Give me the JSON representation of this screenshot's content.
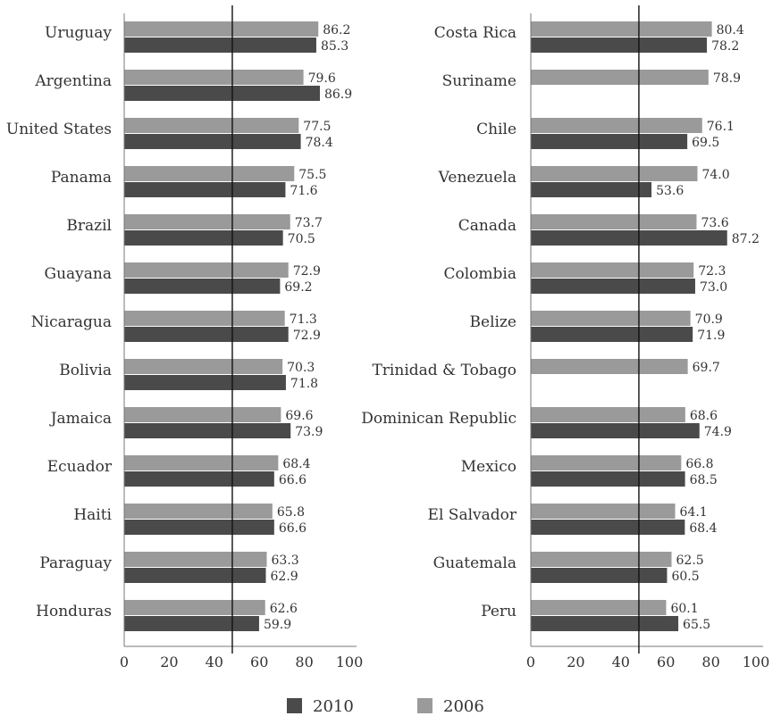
{
  "chart_data": [
    {
      "type": "bar",
      "orientation": "horizontal",
      "categories": [
        "Uruguay",
        "Argentina",
        "United States",
        "Panama",
        "Brazil",
        "Guayana",
        "Nicaragua",
        "Bolivia",
        "Jamaica",
        "Ecuador",
        "Haiti",
        "Paraguay",
        "Honduras"
      ],
      "series": [
        {
          "name": "2006",
          "values": [
            86.2,
            79.6,
            77.5,
            75.5,
            73.7,
            72.9,
            71.3,
            70.3,
            69.6,
            68.4,
            65.8,
            63.3,
            62.6
          ]
        },
        {
          "name": "2010",
          "values": [
            85.3,
            86.9,
            78.4,
            71.6,
            70.5,
            69.2,
            72.9,
            71.8,
            73.9,
            66.6,
            66.6,
            62.9,
            59.9
          ]
        }
      ],
      "xlim": [
        0,
        100
      ],
      "xticks": [
        "0",
        "20",
        "40",
        "60",
        "80",
        "100"
      ],
      "reference_line": 48
    },
    {
      "type": "bar",
      "orientation": "horizontal",
      "categories": [
        "Costa Rica",
        "Suriname",
        "Chile",
        "Venezuela",
        "Canada",
        "Colombia",
        "Belize",
        "Trinidad & Tobago",
        "Dominican Republic",
        "Mexico",
        "El Salvador",
        "Guatemala",
        "Peru"
      ],
      "series": [
        {
          "name": "2006",
          "values": [
            80.4,
            78.9,
            76.1,
            74.0,
            73.6,
            72.3,
            70.9,
            69.7,
            68.6,
            66.8,
            64.1,
            62.5,
            60.1
          ]
        },
        {
          "name": "2010",
          "values": [
            78.2,
            null,
            69.5,
            53.6,
            87.2,
            73.0,
            71.9,
            null,
            74.9,
            68.5,
            68.4,
            60.5,
            65.5
          ]
        }
      ],
      "xlim": [
        0,
        100
      ],
      "xticks": [
        "0",
        "20",
        "40",
        "60",
        "80",
        "100"
      ],
      "reference_line": 48
    }
  ],
  "legend": {
    "position": "bottom-center",
    "items": [
      {
        "label": "2010",
        "color": "#4a4a4a"
      },
      {
        "label": "2006",
        "color": "#9a9a9a"
      }
    ]
  },
  "colors": {
    "series_2010": "#4a4a4a",
    "series_2006": "#9a9a9a",
    "axis": "#777777",
    "reference": "#111111"
  }
}
